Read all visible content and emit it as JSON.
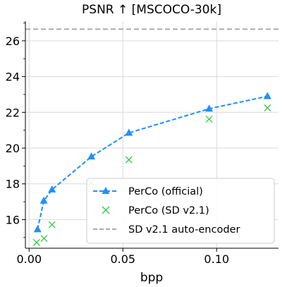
{
  "chart_data": {
    "type": "line",
    "title": "PSNR ↑  [MSCOCO-30k]",
    "xlabel": "bpp",
    "ylabel": "",
    "xlim": [
      -0.002,
      0.133
    ],
    "ylim": [
      14.4,
      27.1
    ],
    "xticks": [
      0.0,
      0.05,
      0.1
    ],
    "xtick_labels": [
      "0.00",
      "0.05",
      "0.10"
    ],
    "yticks": [
      16,
      18,
      20,
      22,
      24,
      26
    ],
    "ytick_labels": [
      "16",
      "18",
      "20",
      "22",
      "24",
      "26"
    ],
    "grid": true,
    "legend_position": "lower-right",
    "series": [
      {
        "name": "PerCo (official)",
        "style": "dashed-line-triangle",
        "color": "#1e90ff",
        "x": [
          0.0045,
          0.0078,
          0.0122,
          0.0332,
          0.0532,
          0.096,
          0.1271
        ],
        "y": [
          15.45,
          17.05,
          17.68,
          19.52,
          20.85,
          22.2,
          22.9
        ]
      },
      {
        "name": "PerCo (SD v2.1)",
        "style": "x-marker",
        "color": "#2ecc40",
        "x": [
          0.004,
          0.008,
          0.0122,
          0.0332,
          0.0532,
          0.096,
          0.1271
        ],
        "y": [
          14.72,
          14.95,
          15.72,
          18.05,
          19.35,
          21.62,
          22.25
        ]
      },
      {
        "name": "SD v2.1 auto-encoder",
        "style": "dashed-hline",
        "color": "#aaaaaa",
        "y": 26.65
      }
    ]
  }
}
